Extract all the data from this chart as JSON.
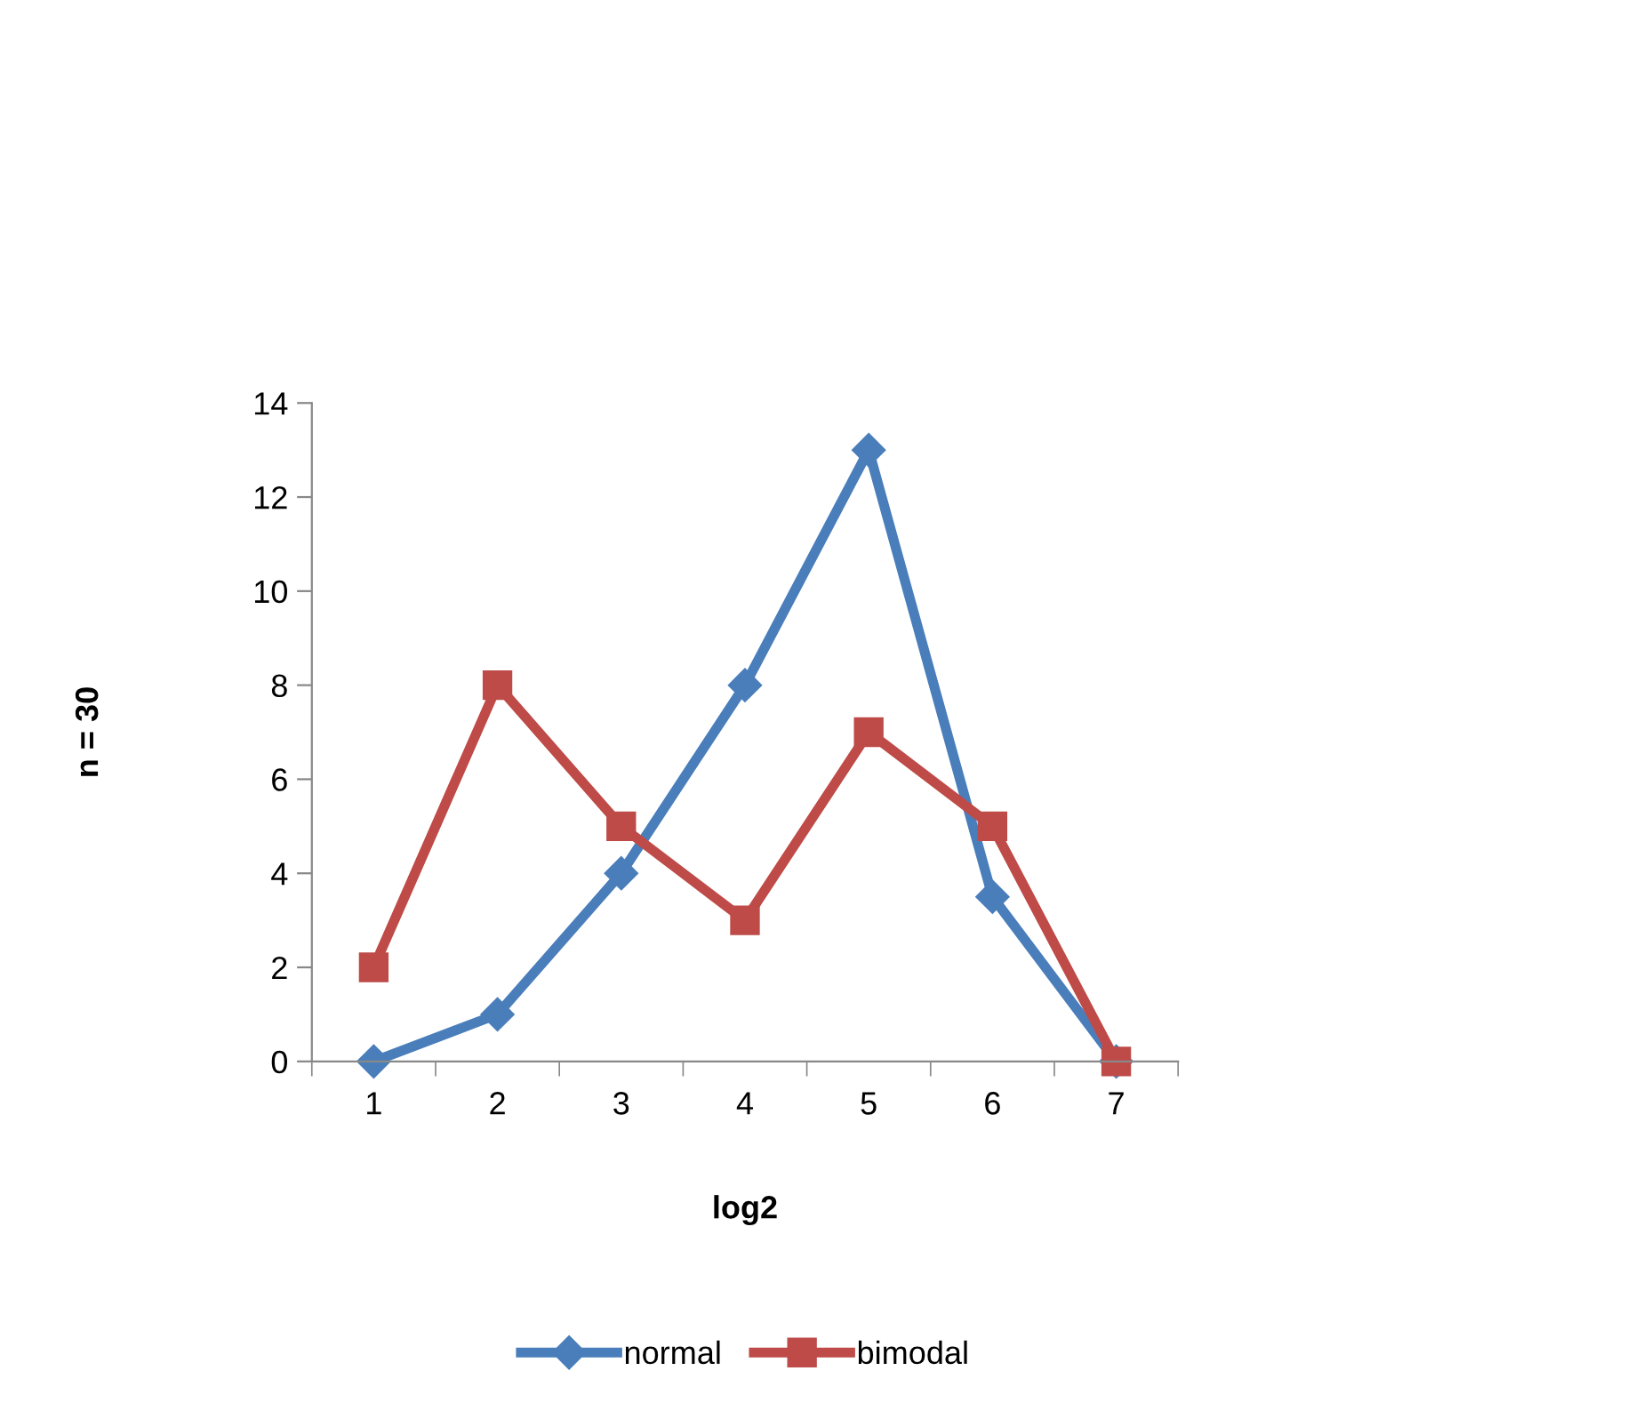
{
  "chart_data": {
    "type": "line",
    "xlabel": "log2",
    "ylabel": "n = 30",
    "categories": [
      "1",
      "2",
      "3",
      "4",
      "5",
      "6",
      "7"
    ],
    "series": [
      {
        "name": "normal",
        "color": "#4a7ebb",
        "marker": "diamond",
        "values": [
          0,
          1,
          4,
          8,
          13,
          3.5,
          0
        ]
      },
      {
        "name": "bimodal",
        "color": "#be4b48",
        "marker": "square",
        "values": [
          2,
          8,
          5,
          3,
          7,
          5,
          0
        ]
      }
    ],
    "ylim": [
      0,
      14
    ],
    "yticks": [
      0,
      2,
      4,
      6,
      8,
      10,
      12,
      14
    ],
    "grid": false,
    "legend": "bottom",
    "line_style": "solid"
  }
}
